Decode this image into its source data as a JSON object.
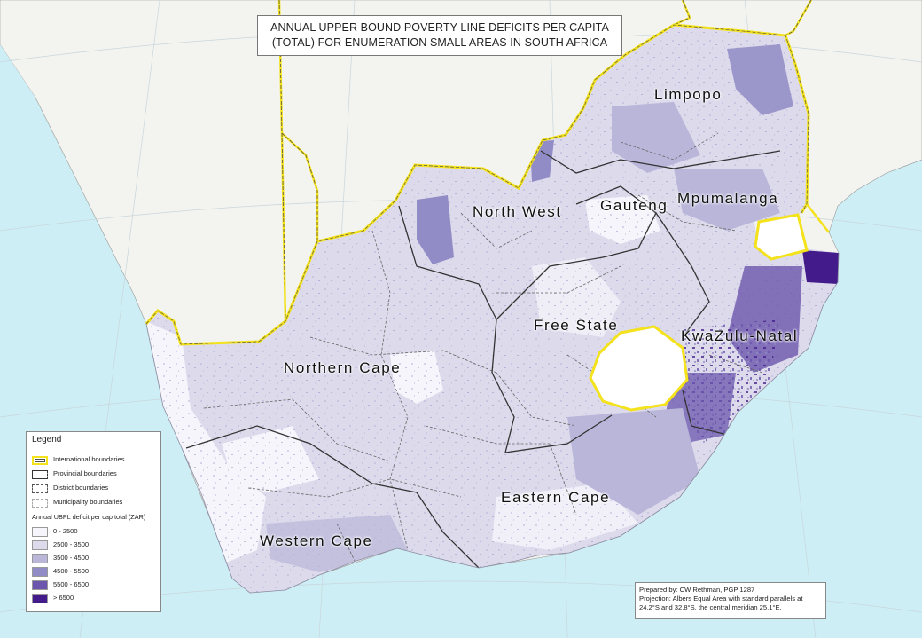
{
  "title": {
    "line1": "ANNUAL UPPER BOUND POVERTY LINE DEFICITS PER CAPITA",
    "line2": "(TOTAL) FOR ENUMERATION SMALL AREAS IN SOUTH AFRICA"
  },
  "provinces": [
    {
      "name": "Limpopo"
    },
    {
      "name": "North West"
    },
    {
      "name": "Gauteng"
    },
    {
      "name": "Mpumalanga"
    },
    {
      "name": "Free State"
    },
    {
      "name": "KwaZulu-Natal"
    },
    {
      "name": "Northern Cape"
    },
    {
      "name": "Eastern Cape"
    },
    {
      "name": "Western Cape"
    }
  ],
  "legend": {
    "title": "Legend",
    "boundaries": [
      {
        "label": "International boundaries",
        "icon": "international-boundary-symbol"
      },
      {
        "label": "Provincial boundaries",
        "icon": "provincial-boundary-symbol"
      },
      {
        "label": "District boundaries",
        "icon": "district-boundary-symbol"
      },
      {
        "label": "Municipality boundaries",
        "icon": "municipality-boundary-symbol"
      }
    ],
    "classes_title": "Annual UBPL deficit per cap total (ZAR)",
    "classes": [
      {
        "label": "0 - 2500",
        "color": "#f6f5fb"
      },
      {
        "label": "2500 - 3500",
        "color": "#dcdaeb"
      },
      {
        "label": "3500 - 4500",
        "color": "#b9b6da"
      },
      {
        "label": "4500 - 5500",
        "color": "#918bc6"
      },
      {
        "label": "5500 - 6500",
        "color": "#6b55ad"
      },
      {
        "label": "> 6500",
        "color": "#431b8a"
      }
    ]
  },
  "credits": {
    "line1": "Prepared by: CW Rethman, PGP 1287",
    "line2": "Projection: Albers Equal Area with standard parallels at",
    "line3": "24.2°S  and 32.8°S, the central meridian 25.1°E."
  },
  "colors": {
    "ocean": "#cdeef5",
    "land_outside": "#f3f3ef",
    "international_boundary": "#f3e21c",
    "lesotho": "#ffffff"
  }
}
